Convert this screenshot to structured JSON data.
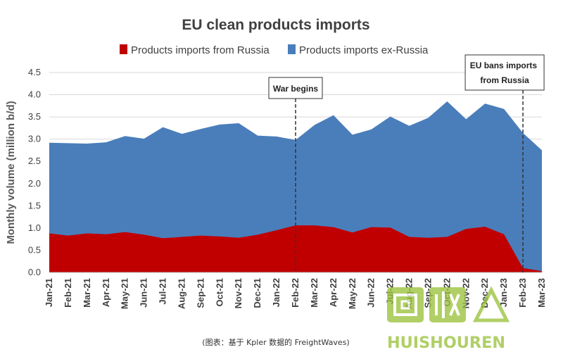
{
  "chart_data": {
    "type": "area",
    "stacked": true,
    "title": "EU clean products imports",
    "ylabel": "Monthly volume (million b/d)",
    "xlabel": "",
    "ylim": [
      0,
      4.5
    ],
    "yticks": [
      "0.0",
      "0.5",
      "1.0",
      "1.5",
      "2.0",
      "2.5",
      "3.0",
      "3.5",
      "4.0",
      "4.5"
    ],
    "grid": true,
    "legend_position": "top",
    "categories": [
      "Jan-21",
      "Feb-21",
      "Mar-21",
      "Apr-21",
      "May-21",
      "Jun-21",
      "Jul-21",
      "Aug-21",
      "Sep-21",
      "Oct-21",
      "Nov-21",
      "Dec-21",
      "Jan-22",
      "Feb-22",
      "Mar-22",
      "Apr-22",
      "May-22",
      "Jun-22",
      "Jul-22",
      "Aug-22",
      "Sep-22",
      "Oct-22",
      "Nov-22",
      "Dec-22",
      "Jan-23",
      "Feb-23",
      "Mar-23"
    ],
    "series": [
      {
        "name": "Products imports from Russia",
        "color": "#c00000",
        "values": [
          0.88,
          0.83,
          0.88,
          0.86,
          0.91,
          0.85,
          0.77,
          0.8,
          0.83,
          0.81,
          0.78,
          0.85,
          0.95,
          1.06,
          1.06,
          1.02,
          0.9,
          1.02,
          1.01,
          0.8,
          0.78,
          0.8,
          0.98,
          1.03,
          0.86,
          0.1,
          0.03
        ]
      },
      {
        "name": "Products imports ex-Russia",
        "color": "#4a7ebb",
        "values": [
          2.04,
          2.08,
          2.02,
          2.07,
          2.16,
          2.16,
          2.5,
          2.32,
          2.4,
          2.52,
          2.58,
          2.23,
          2.11,
          1.92,
          2.26,
          2.52,
          2.2,
          2.2,
          2.5,
          2.5,
          2.7,
          3.05,
          2.47,
          2.77,
          2.82,
          3.04,
          2.72
        ]
      }
    ],
    "annotations": [
      {
        "label": "War begins",
        "x": "Feb-22"
      },
      {
        "label": "EU bans imports from Russia",
        "x": "Feb-23"
      }
    ]
  },
  "source_note": "(图表：基于 Kpler 数据的 FreightWaves)",
  "watermark": {
    "text": "HUISHOUREN",
    "color": "#9bc23c"
  }
}
